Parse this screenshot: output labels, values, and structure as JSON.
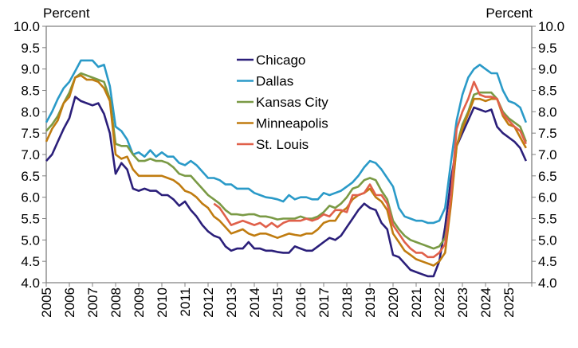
{
  "chart_data": {
    "type": "line",
    "title": "",
    "ylabel_left": "Percent",
    "ylabel_right": "Percent",
    "xlabel": "",
    "ylim": [
      4.0,
      10.0
    ],
    "yticks": [
      "4.0",
      "4.5",
      "5.0",
      "5.5",
      "6.0",
      "6.5",
      "7.0",
      "7.5",
      "8.0",
      "8.5",
      "9.0",
      "9.5",
      "10.0"
    ],
    "xlim": [
      2005,
      2026
    ],
    "xticks": [
      "2005",
      "2006",
      "2007",
      "2008",
      "2009",
      "2010",
      "2011",
      "2012",
      "2013",
      "2014",
      "2015",
      "2016",
      "2017",
      "2018",
      "2019",
      "2020",
      "2021",
      "2022",
      "2023",
      "2024",
      "2025"
    ],
    "x_start": 2005.0,
    "x_step": 0.25,
    "grid": false,
    "legend_position": "top-center",
    "series": [
      {
        "name": "Chicago",
        "color": "#2b1f7a",
        "values": [
          6.85,
          7.0,
          7.3,
          7.6,
          7.85,
          8.35,
          8.25,
          8.2,
          8.15,
          8.2,
          7.95,
          7.5,
          6.55,
          6.8,
          6.65,
          6.2,
          6.15,
          6.2,
          6.15,
          6.15,
          6.05,
          6.05,
          5.95,
          5.8,
          5.9,
          5.7,
          5.55,
          5.35,
          5.2,
          5.1,
          5.05,
          4.85,
          4.75,
          4.8,
          4.8,
          4.95,
          4.8,
          4.8,
          4.75,
          4.75,
          4.72,
          4.7,
          4.7,
          4.85,
          4.8,
          4.75,
          4.75,
          4.85,
          4.95,
          5.05,
          5.0,
          5.1,
          5.3,
          5.5,
          5.7,
          5.85,
          5.75,
          5.7,
          5.4,
          5.25,
          4.65,
          4.6,
          4.45,
          4.3,
          4.25,
          4.2,
          4.15,
          4.15,
          4.5,
          5.3,
          6.4,
          7.2,
          7.5,
          7.8,
          8.1,
          8.05,
          8.0,
          8.05,
          7.65,
          7.5,
          7.4,
          7.3,
          7.15,
          6.85
        ]
      },
      {
        "name": "Dallas",
        "color": "#2a9ac8",
        "values": [
          7.75,
          8.0,
          8.3,
          8.55,
          8.7,
          8.95,
          9.2,
          9.2,
          9.2,
          9.05,
          9.1,
          8.6,
          7.65,
          7.55,
          7.35,
          7.0,
          7.05,
          6.95,
          7.1,
          6.95,
          7.05,
          6.95,
          6.95,
          6.8,
          6.75,
          6.85,
          6.75,
          6.6,
          6.45,
          6.45,
          6.4,
          6.3,
          6.3,
          6.2,
          6.2,
          6.2,
          6.1,
          6.05,
          6.0,
          5.98,
          5.95,
          5.9,
          6.05,
          5.95,
          6.0,
          6.0,
          5.95,
          5.95,
          6.1,
          6.05,
          6.1,
          6.15,
          6.25,
          6.35,
          6.5,
          6.7,
          6.85,
          6.8,
          6.65,
          6.45,
          6.25,
          5.75,
          5.55,
          5.5,
          5.45,
          5.45,
          5.4,
          5.4,
          5.45,
          5.75,
          6.8,
          7.8,
          8.4,
          8.8,
          9.0,
          9.1,
          9.0,
          8.9,
          8.9,
          8.5,
          8.25,
          8.2,
          8.1,
          7.75
        ]
      },
      {
        "name": "Kansas City",
        "color": "#7a9a45",
        "values": [
          7.55,
          7.7,
          7.9,
          8.2,
          8.45,
          8.8,
          8.9,
          8.85,
          8.8,
          8.75,
          8.7,
          8.3,
          7.25,
          7.2,
          7.2,
          7.0,
          6.85,
          6.85,
          6.9,
          6.85,
          6.85,
          6.8,
          6.7,
          6.55,
          6.5,
          6.5,
          6.35,
          6.2,
          6.05,
          5.95,
          5.85,
          5.7,
          5.6,
          5.6,
          5.58,
          5.6,
          5.6,
          5.55,
          5.55,
          5.52,
          5.48,
          5.5,
          5.5,
          5.5,
          5.55,
          5.5,
          5.5,
          5.55,
          5.65,
          5.8,
          5.75,
          5.85,
          6.0,
          6.2,
          6.25,
          6.4,
          6.45,
          6.4,
          6.15,
          5.95,
          5.45,
          5.25,
          5.1,
          5.0,
          4.95,
          4.9,
          4.85,
          4.8,
          4.85,
          5.05,
          5.9,
          7.2,
          7.7,
          8.0,
          8.4,
          8.45,
          8.45,
          8.45,
          8.3,
          8.0,
          7.85,
          7.75,
          7.65,
          7.3
        ]
      },
      {
        "name": "Minneapolis",
        "color": "#c07c10",
        "values": [
          7.3,
          7.6,
          7.8,
          8.2,
          8.35,
          8.8,
          8.85,
          8.75,
          8.75,
          8.7,
          8.55,
          8.25,
          7.0,
          6.9,
          6.95,
          6.65,
          6.5,
          6.5,
          6.5,
          6.5,
          6.5,
          6.45,
          6.4,
          6.3,
          6.15,
          6.1,
          6.0,
          5.85,
          5.75,
          5.55,
          5.45,
          5.3,
          5.15,
          5.2,
          5.25,
          5.15,
          5.1,
          5.15,
          5.15,
          5.1,
          5.05,
          5.1,
          5.15,
          5.12,
          5.1,
          5.15,
          5.15,
          5.25,
          5.4,
          5.45,
          5.45,
          5.65,
          5.75,
          5.95,
          6.05,
          6.1,
          6.2,
          6.0,
          5.9,
          5.7,
          5.15,
          4.95,
          4.75,
          4.65,
          4.55,
          4.5,
          4.45,
          4.4,
          4.5,
          4.7,
          5.8,
          7.2,
          7.6,
          7.95,
          8.3,
          8.3,
          8.25,
          8.3,
          8.3,
          7.9,
          7.7,
          7.65,
          7.4,
          7.15
        ]
      },
      {
        "name": "St. Louis",
        "color": "#e0604a",
        "values": [
          null,
          null,
          null,
          null,
          null,
          null,
          null,
          null,
          null,
          null,
          null,
          null,
          null,
          null,
          null,
          null,
          null,
          null,
          null,
          null,
          null,
          null,
          null,
          null,
          null,
          null,
          null,
          null,
          null,
          5.85,
          5.75,
          5.55,
          5.35,
          5.4,
          5.45,
          5.4,
          5.35,
          5.4,
          5.3,
          5.4,
          5.3,
          5.4,
          5.45,
          5.45,
          5.45,
          5.5,
          5.45,
          5.5,
          5.6,
          5.55,
          5.7,
          5.7,
          5.65,
          6.05,
          6.05,
          6.1,
          6.3,
          6.05,
          6.05,
          5.85,
          5.35,
          5.15,
          4.95,
          4.8,
          4.7,
          4.7,
          4.6,
          4.6,
          4.7,
          4.9,
          6.0,
          7.6,
          8.0,
          8.3,
          8.7,
          8.4,
          8.35,
          8.35,
          8.3,
          7.95,
          7.8,
          7.65,
          7.55,
          7.25
        ]
      }
    ]
  }
}
